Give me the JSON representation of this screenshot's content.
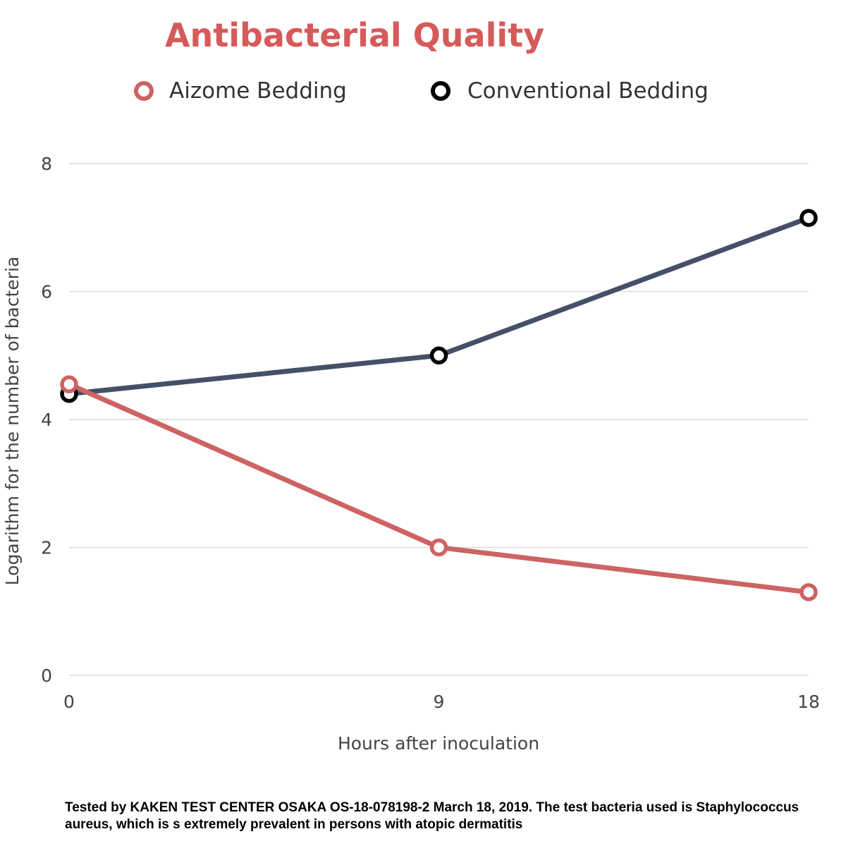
{
  "colors": {
    "title": "#d65a5a",
    "aizome": "#cd6363",
    "conventional": "#445068",
    "conventional_marker": "#000000",
    "grid": "#d9d9d9"
  },
  "chart_data": {
    "type": "line",
    "title": "Antibacterial Quality",
    "xlabel": "Hours after  inoculation",
    "ylabel": "Logarithm for the number of bacteria",
    "x": [
      0,
      9,
      18
    ],
    "x_ticks": [
      "0",
      "9",
      "18"
    ],
    "y_ticks": [
      "0",
      "2",
      "4",
      "6",
      "8"
    ],
    "ylim": [
      0,
      8
    ],
    "grid": true,
    "legend_position": "top",
    "series": [
      {
        "name": "Aizome Bedding",
        "values": [
          4.55,
          2.0,
          1.3
        ],
        "color": "#cd6363"
      },
      {
        "name": "Conventional Bedding",
        "values": [
          4.4,
          5.0,
          7.15
        ],
        "color": "#445068"
      }
    ]
  },
  "footnote": "Tested by KAKEN TEST CENTER OSAKA OS-18-078198-2 March 18, 2019. The test bacteria used is Staphylococcus aureus, which is s extremely prevalent in persons with atopic dermatitis"
}
